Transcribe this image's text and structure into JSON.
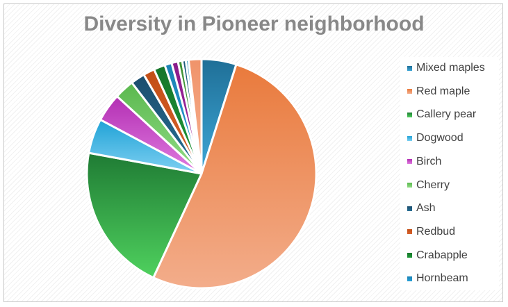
{
  "chart_data": {
    "type": "pie",
    "title": "Diversity in Pioneer neighborhood",
    "legend_position": "right",
    "slices": [
      {
        "name": "Mixed maples",
        "value": 4.9,
        "color": "#1f6f97",
        "light": "#3ea7d7"
      },
      {
        "name": "Red maple",
        "value": 52.0,
        "color": "#e97a3c",
        "light": "#f3ad8b"
      },
      {
        "name": "Callery pear",
        "value": 21.0,
        "color": "#1f7b34",
        "light": "#4fd15e"
      },
      {
        "name": "Dogwood",
        "value": 4.9,
        "color": "#1fa2d6",
        "light": "#7fd0f2"
      },
      {
        "name": "Birch",
        "value": 4.0,
        "color": "#b32fb3",
        "light": "#e07ce0"
      },
      {
        "name": "Cherry",
        "value": 2.8,
        "color": "#5ab84e",
        "light": "#92dc86"
      },
      {
        "name": "Ash",
        "value": 2.0,
        "color": "#1c4e6e",
        "light": "#276f95"
      },
      {
        "name": "Redbud",
        "value": 1.6,
        "color": "#c24e16",
        "light": "#d8622c"
      },
      {
        "name": "Crabapple",
        "value": 1.6,
        "color": "#16752a",
        "light": "#1f9a39"
      },
      {
        "name": "Hornbeam",
        "value": 1.0,
        "color": "#1b82b4",
        "light": "#27a0d8"
      },
      {
        "name": "",
        "value": 0.9,
        "color": "#8a1c8a",
        "light": "#a62ba6"
      },
      {
        "name": "",
        "value": 0.6,
        "color": "#3d8f33",
        "light": "#56b04a"
      },
      {
        "name": "",
        "value": 0.5,
        "color": "#1e5a7a",
        "light": "#2d7ea8"
      },
      {
        "name": "",
        "value": 0.4,
        "color": "#4aa6cc",
        "light": "#8fd3ec"
      },
      {
        "name": "",
        "value": 1.8,
        "color": "#f0936a",
        "light": "#f6b291"
      }
    ]
  }
}
